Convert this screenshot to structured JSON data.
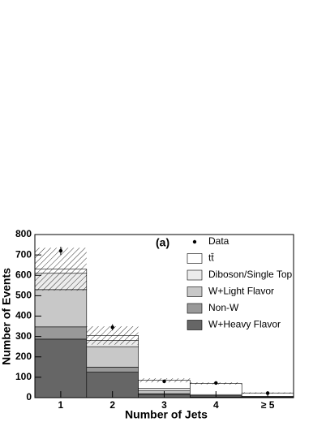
{
  "chart_data": {
    "type": "stacked-histogram",
    "x_label": "Number of Jets",
    "y_label": "Number of Events",
    "annotation": "(a)",
    "categories": [
      "1",
      "2",
      "3",
      "4",
      "≥ 5"
    ],
    "series": [
      {
        "name": "W+Heavy Flavor",
        "color": "#666666",
        "values": [
          287,
          125,
          15,
          3,
          1
        ]
      },
      {
        "name": "Non-W",
        "color": "#999999",
        "values": [
          60,
          25,
          5,
          2,
          1
        ]
      },
      {
        "name": "W+Light Flavor",
        "color": "#c8c8c8",
        "values": [
          183,
          100,
          15,
          5,
          2
        ]
      },
      {
        "name": "Diboson/Single Top",
        "color": "#ececec",
        "values": [
          80,
          30,
          10,
          5,
          2
        ]
      },
      {
        "name": "tt̄",
        "color": "#ffffff",
        "values": [
          20,
          25,
          40,
          55,
          17
        ]
      }
    ],
    "uncertainty": [
      105,
      45,
      10,
      5,
      3
    ],
    "data": {
      "name": "Data",
      "values": [
        720,
        345,
        80,
        72,
        22
      ],
      "errors": [
        20,
        15,
        9,
        8,
        5
      ]
    },
    "ylim": [
      0,
      800
    ],
    "yticks": [
      0,
      100,
      200,
      300,
      400,
      500,
      600,
      700,
      800
    ]
  }
}
